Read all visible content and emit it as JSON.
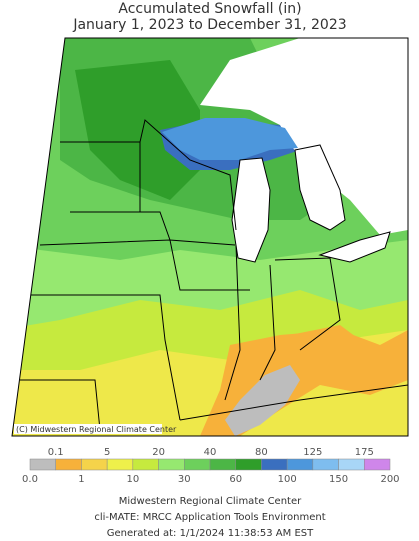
{
  "header": {
    "title": "Accumulated Snowfall (in)",
    "subtitle": "January 1, 2023 to December 31, 2023"
  },
  "map": {
    "credit": "(C) Midwestern Regional Climate Center"
  },
  "legend": {
    "colors": [
      "#bdbdbd",
      "#f7b13a",
      "#f5d34a",
      "#eef04a",
      "#c6ea3e",
      "#96e870",
      "#6dd05c",
      "#4cb646",
      "#2f9e2a",
      "#3a6fbf",
      "#4d97dc",
      "#7ebdef",
      "#a8d6f7",
      "#cf86ea"
    ],
    "labels": [
      "0.0",
      "0.1",
      "1",
      "5",
      "10",
      "20",
      "30",
      "40",
      "60",
      "80",
      "100",
      "125",
      "150",
      "175",
      "200"
    ]
  },
  "footer": {
    "lines": [
      "Midwestern Regional Climate Center",
      "cli-MATE: MRCC Application Tools Environment",
      "Generated at: 1/1/2024 11:38:53 AM EST"
    ]
  }
}
